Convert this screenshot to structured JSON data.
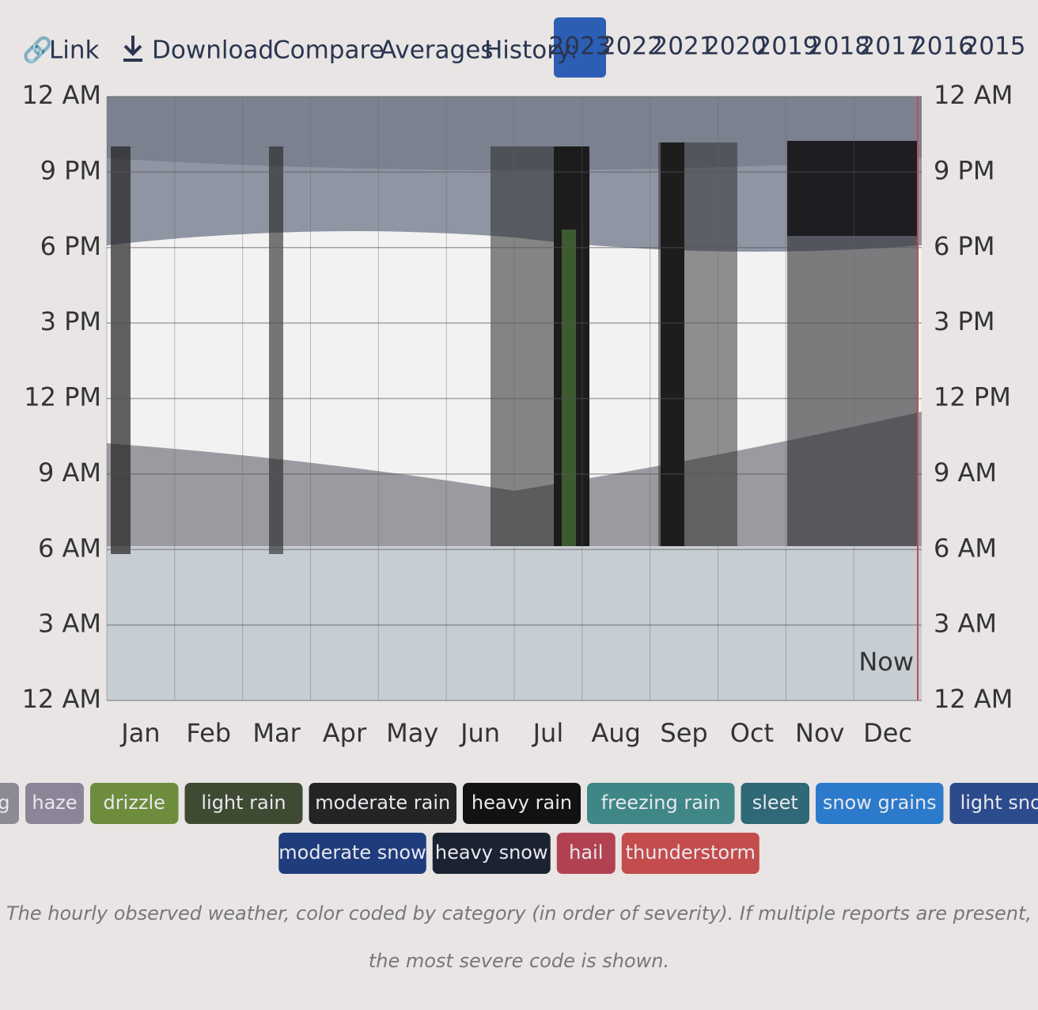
{
  "toolbar": {
    "link": "Link",
    "download": "Download",
    "compare": "Compare",
    "averages": "Averages",
    "history_label": "History:",
    "years": [
      "2023",
      "2022",
      "2021",
      "2020",
      "2019",
      "2018",
      "2017",
      "2016",
      "2015"
    ],
    "selected_index": 0
  },
  "chart": {
    "hour_labels": [
      "12 AM",
      "9 PM",
      "6 PM",
      "3 PM",
      "12 PM",
      "9 AM",
      "6 AM",
      "3 AM",
      "12 AM"
    ],
    "months": [
      "Jan",
      "Feb",
      "Mar",
      "Apr",
      "May",
      "Jun",
      "Jul",
      "Aug",
      "Sep",
      "Oct",
      "Nov",
      "Dec"
    ],
    "now_label": "Now"
  },
  "legend": [
    {
      "label": "fog",
      "color": "#8b8b96"
    },
    {
      "label": "haze",
      "color": "#8c8598"
    },
    {
      "label": "drizzle",
      "color": "#6d8c3c"
    },
    {
      "label": "light rain",
      "color": "#3f4a32"
    },
    {
      "label": "moderate rain",
      "color": "#242424"
    },
    {
      "label": "heavy rain",
      "color": "#121212"
    },
    {
      "label": "freezing rain",
      "color": "#3f8787"
    },
    {
      "label": "sleet",
      "color": "#2f6877"
    },
    {
      "label": "snow grains",
      "color": "#2c7acb"
    },
    {
      "label": "light snow",
      "color": "#2c4b8c"
    },
    {
      "label": "moderate snow",
      "color": "#1f3c7c"
    },
    {
      "label": "heavy snow",
      "color": "#1b2232"
    },
    {
      "label": "hail",
      "color": "#b24252"
    },
    {
      "label": "thunderstorm",
      "color": "#c44c4c"
    }
  ],
  "caption": [
    "The hourly observed weather, color coded by category (in order of severity). If multiple reports are present,",
    "the most severe code is shown."
  ]
}
